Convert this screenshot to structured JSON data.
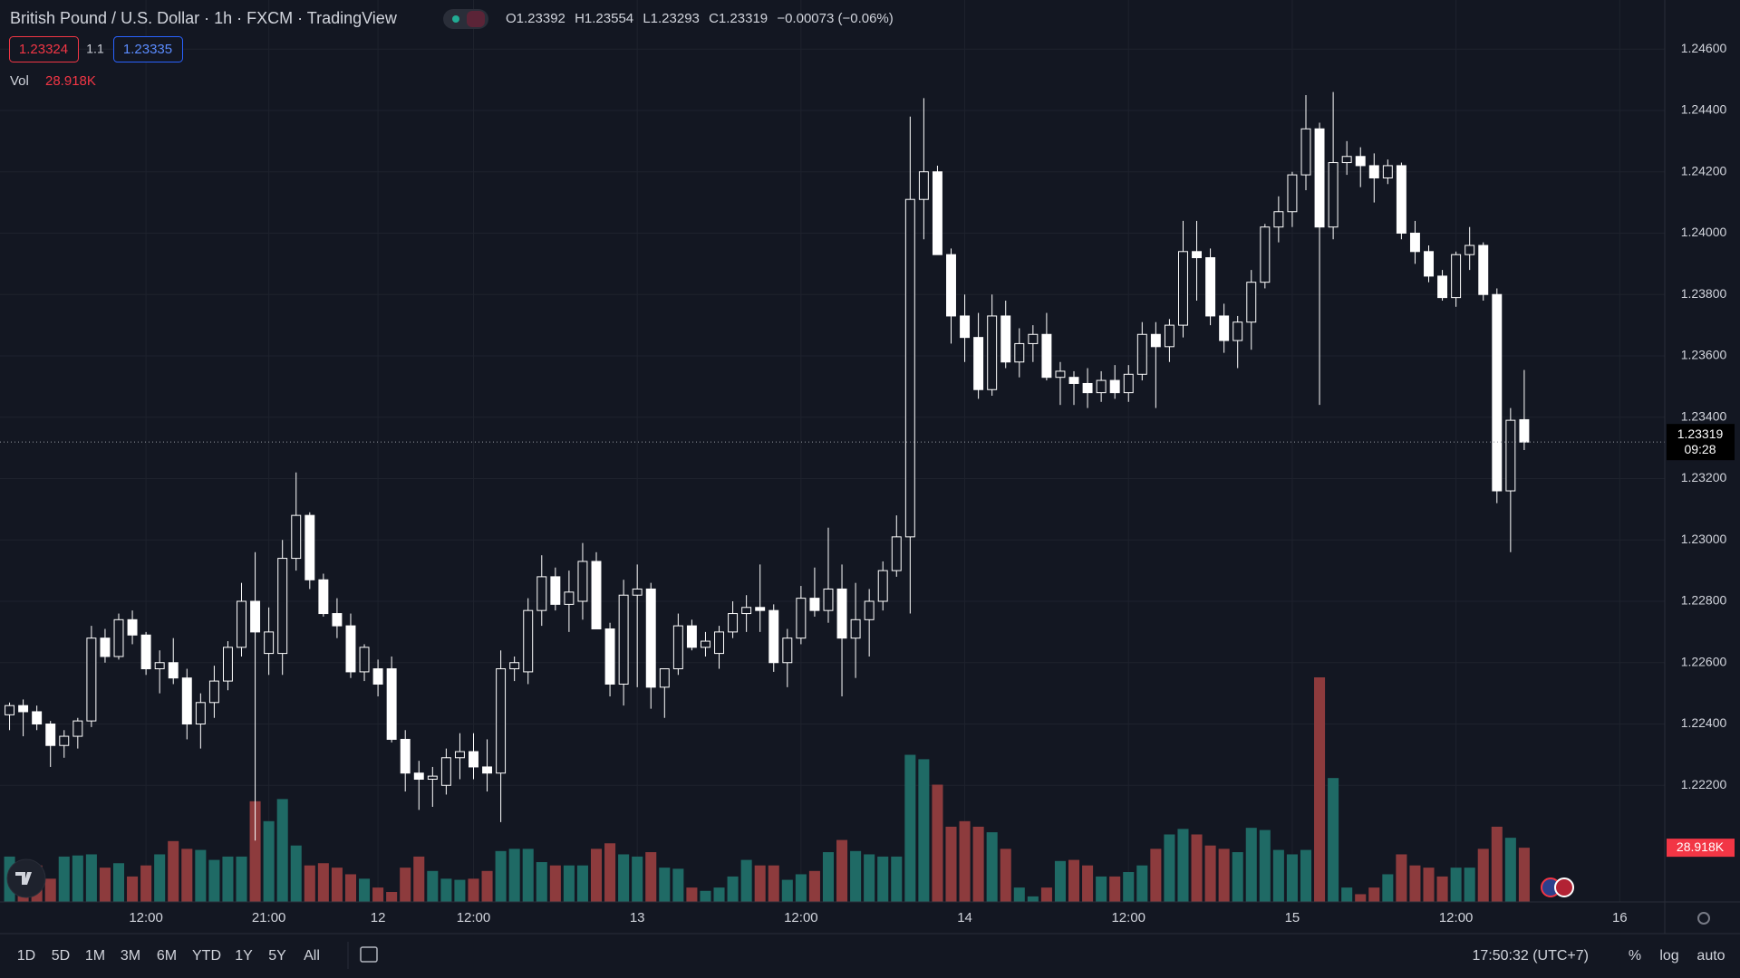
{
  "header": {
    "title": "British Pound / U.S. Dollar · 1h · FXCM · TradingView",
    "ohlc_labels": [
      "O",
      "H",
      "L",
      "C"
    ],
    "change": "−0.00073 (−0.06%)"
  },
  "trade": {
    "sell": "1.23324",
    "qty": "1.1",
    "buy": "1.23335"
  },
  "chart_data": {
    "type": "candlestick",
    "candles": [
      [
        1.2243,
        1.2247,
        1.2238,
        1.2246
      ],
      [
        1.2246,
        1.2248,
        1.2236,
        1.2244
      ],
      [
        1.2244,
        1.2246,
        1.2238,
        1.224
      ],
      [
        1.224,
        1.2241,
        1.2226,
        1.2233
      ],
      [
        1.2233,
        1.2238,
        1.2229,
        1.2236
      ],
      [
        1.2236,
        1.2242,
        1.2232,
        1.2241
      ],
      [
        1.2241,
        1.2272,
        1.2239,
        1.2268
      ],
      [
        1.2268,
        1.2271,
        1.226,
        1.2262
      ],
      [
        1.2262,
        1.2276,
        1.2261,
        1.2274
      ],
      [
        1.2274,
        1.2277,
        1.2266,
        1.2269
      ],
      [
        1.2269,
        1.227,
        1.2256,
        1.2258
      ],
      [
        1.2258,
        1.2264,
        1.225,
        1.226
      ],
      [
        1.226,
        1.2268,
        1.2253,
        1.2255
      ],
      [
        1.2255,
        1.2258,
        1.2235,
        1.224
      ],
      [
        1.224,
        1.225,
        1.2232,
        1.2247
      ],
      [
        1.2247,
        1.2259,
        1.2242,
        1.2254
      ],
      [
        1.2254,
        1.2267,
        1.2251,
        1.2265
      ],
      [
        1.2265,
        1.2286,
        1.2262,
        1.228
      ],
      [
        1.228,
        1.2296,
        1.2202,
        1.227
      ],
      [
        1.2263,
        1.2278,
        1.2256,
        1.227
      ],
      [
        1.2263,
        1.23,
        1.2256,
        1.2294
      ],
      [
        1.2294,
        1.2322,
        1.229,
        1.2308
      ],
      [
        1.2308,
        1.2309,
        1.2284,
        1.2287
      ],
      [
        1.2287,
        1.2289,
        1.2275,
        1.2276
      ],
      [
        1.2276,
        1.2281,
        1.2268,
        1.2272
      ],
      [
        1.2272,
        1.2276,
        1.2255,
        1.2257
      ],
      [
        1.2257,
        1.2266,
        1.2254,
        1.2265
      ],
      [
        1.2258,
        1.2261,
        1.2249,
        1.2253
      ],
      [
        1.2258,
        1.2262,
        1.2234,
        1.2235
      ],
      [
        1.2235,
        1.2238,
        1.2218,
        1.2224
      ],
      [
        1.2224,
        1.2228,
        1.2212,
        1.2222
      ],
      [
        1.2222,
        1.2226,
        1.2213,
        1.2223
      ],
      [
        1.222,
        1.2232,
        1.2217,
        1.2229
      ],
      [
        1.2229,
        1.2237,
        1.2222,
        1.2231
      ],
      [
        1.2231,
        1.2237,
        1.2222,
        1.2226
      ],
      [
        1.2226,
        1.2235,
        1.2218,
        1.2224
      ],
      [
        1.2224,
        1.2264,
        1.2208,
        1.2258
      ],
      [
        1.2258,
        1.2262,
        1.2254,
        1.226
      ],
      [
        1.2257,
        1.2281,
        1.2253,
        1.2277
      ],
      [
        1.2277,
        1.2295,
        1.2272,
        1.2288
      ],
      [
        1.2288,
        1.2291,
        1.2277,
        1.2279
      ],
      [
        1.2279,
        1.229,
        1.227,
        1.2283
      ],
      [
        1.228,
        1.2299,
        1.2274,
        1.2293
      ],
      [
        1.2293,
        1.2296,
        1.2271,
        1.2271
      ],
      [
        1.2271,
        1.2273,
        1.2249,
        1.2253
      ],
      [
        1.2253,
        1.2287,
        1.2246,
        1.2282
      ],
      [
        1.2282,
        1.2292,
        1.2252,
        1.2284
      ],
      [
        1.2284,
        1.2286,
        1.2245,
        1.2252
      ],
      [
        1.2252,
        1.2258,
        1.2242,
        1.2258
      ],
      [
        1.2258,
        1.2276,
        1.2256,
        1.2272
      ],
      [
        1.2272,
        1.2274,
        1.2264,
        1.2265
      ],
      [
        1.2265,
        1.227,
        1.2262,
        1.2267
      ],
      [
        1.2263,
        1.2272,
        1.2258,
        1.227
      ],
      [
        1.227,
        1.228,
        1.2268,
        1.2276
      ],
      [
        1.2276,
        1.2282,
        1.227,
        1.2278
      ],
      [
        1.2278,
        1.2292,
        1.227,
        1.2277
      ],
      [
        1.2277,
        1.2279,
        1.2257,
        1.226
      ],
      [
        1.226,
        1.2271,
        1.2252,
        1.2268
      ],
      [
        1.2268,
        1.2285,
        1.2266,
        1.2281
      ],
      [
        1.2281,
        1.2291,
        1.2275,
        1.2277
      ],
      [
        1.2277,
        1.2304,
        1.2273,
        1.2284
      ],
      [
        1.2284,
        1.2292,
        1.2249,
        1.2268
      ],
      [
        1.2268,
        1.2286,
        1.2255,
        1.2274
      ],
      [
        1.2274,
        1.2284,
        1.2262,
        1.228
      ],
      [
        1.228,
        1.2293,
        1.2277,
        1.229
      ],
      [
        1.229,
        1.2308,
        1.2288,
        1.2301
      ],
      [
        1.2301,
        1.2438,
        1.2276,
        1.2411
      ],
      [
        1.2411,
        1.2444,
        1.2398,
        1.242
      ],
      [
        1.242,
        1.2422,
        1.2393,
        1.2393
      ],
      [
        1.2393,
        1.2395,
        1.2364,
        1.2373
      ],
      [
        1.2373,
        1.238,
        1.2358,
        1.2366
      ],
      [
        1.2366,
        1.2374,
        1.2346,
        1.2349
      ],
      [
        1.2349,
        1.238,
        1.2347,
        1.2373
      ],
      [
        1.2373,
        1.2378,
        1.2356,
        1.2358
      ],
      [
        1.2358,
        1.2369,
        1.2353,
        1.2364
      ],
      [
        1.2364,
        1.237,
        1.2358,
        1.2367
      ],
      [
        1.2367,
        1.2374,
        1.2352,
        1.2353
      ],
      [
        1.2353,
        1.2358,
        1.2344,
        1.2355
      ],
      [
        1.2353,
        1.2355,
        1.2344,
        1.2351
      ],
      [
        1.2351,
        1.2356,
        1.2343,
        1.2348
      ],
      [
        1.2348,
        1.2355,
        1.2345,
        1.2352
      ],
      [
        1.2352,
        1.2357,
        1.2346,
        1.2348
      ],
      [
        1.2348,
        1.2357,
        1.2345,
        1.2354
      ],
      [
        1.2354,
        1.2371,
        1.2352,
        1.2367
      ],
      [
        1.2367,
        1.2371,
        1.2343,
        1.2363
      ],
      [
        1.2363,
        1.2372,
        1.2358,
        1.237
      ],
      [
        1.237,
        1.2404,
        1.2366,
        1.2394
      ],
      [
        1.2394,
        1.2404,
        1.2378,
        1.2392
      ],
      [
        1.2392,
        1.2395,
        1.237,
        1.2373
      ],
      [
        1.2373,
        1.2377,
        1.2361,
        1.2365
      ],
      [
        1.2365,
        1.2373,
        1.2356,
        1.2371
      ],
      [
        1.2371,
        1.2388,
        1.2362,
        1.2384
      ],
      [
        1.2384,
        1.2403,
        1.2382,
        1.2402
      ],
      [
        1.2402,
        1.2412,
        1.2397,
        1.2407
      ],
      [
        1.2407,
        1.242,
        1.2402,
        1.2419
      ],
      [
        1.2419,
        1.2445,
        1.2414,
        1.2434
      ],
      [
        1.2434,
        1.2436,
        1.2344,
        1.2402
      ],
      [
        1.2402,
        1.2446,
        1.2398,
        1.2423
      ],
      [
        1.2423,
        1.243,
        1.2419,
        1.2425
      ],
      [
        1.2425,
        1.2428,
        1.2415,
        1.2422
      ],
      [
        1.2422,
        1.2426,
        1.241,
        1.2418
      ],
      [
        1.2418,
        1.2424,
        1.2416,
        1.2422
      ],
      [
        1.2422,
        1.2423,
        1.2398,
        1.24
      ],
      [
        1.24,
        1.2404,
        1.239,
        1.2394
      ],
      [
        1.2394,
        1.2396,
        1.2384,
        1.2386
      ],
      [
        1.2386,
        1.2388,
        1.2378,
        1.2379
      ],
      [
        1.2379,
        1.2394,
        1.2376,
        1.2393
      ],
      [
        1.2393,
        1.2402,
        1.2388,
        1.2396
      ],
      [
        1.2396,
        1.2397,
        1.2378,
        1.238
      ],
      [
        1.238,
        1.2382,
        1.2312,
        1.2316
      ],
      [
        1.2316,
        1.2343,
        1.2296,
        1.2339
      ],
      [
        1.23392,
        1.23554,
        1.23293,
        1.23319
      ]
    ],
    "up_color": "#131722",
    "down_color": "#ffffff",
    "wick_color": "#ffffff",
    "volume": {
      "name": "Vol",
      "values": [
        24190,
        16520,
        19470,
        12390,
        24190,
        24780,
        25370,
        18290,
        20650,
        13570,
        19470,
        25370,
        32450,
        28320,
        27730,
        22420,
        24190,
        24190,
        53690,
        43070,
        54870,
        30090,
        19470,
        20650,
        18290,
        14750,
        12390,
        7670,
        5310,
        18290,
        24190,
        16520,
        12390,
        11800,
        12390,
        16520,
        27140,
        28320,
        28320,
        21240,
        19470,
        19470,
        19470,
        28320,
        31270,
        25370,
        24190,
        26550,
        18290,
        17700,
        7670,
        5900,
        7670,
        13570,
        22420,
        19470,
        19470,
        11800,
        14750,
        16520,
        26550,
        33040,
        27140,
        25370,
        24190,
        24190,
        78470,
        76110,
        62540,
        40120,
        43070,
        40120,
        37170,
        28320,
        7670,
        2950,
        7670,
        21830,
        22420,
        19470,
        13570,
        13570,
        15930,
        19470,
        28320,
        35990,
        38940,
        35990,
        30090,
        28320,
        26550,
        39530,
        38350,
        27730,
        25370,
        27730,
        119770,
        66080,
        7670,
        4130,
        7670,
        14750,
        25370,
        19470,
        18290,
        13570,
        18290,
        18290,
        28320,
        40120,
        34220,
        28918
      ],
      "last_label": "28.918K",
      "up_color": "#1f6a65",
      "down_color": "#8d3b3d",
      "label_color": "#f23645"
    },
    "ylim": [
      1.2182,
      1.2476
    ],
    "yticks": [
      {
        "value": 1.222,
        "label": "1.22200"
      },
      {
        "value": 1.224,
        "label": "1.22400"
      },
      {
        "value": 1.226,
        "label": "1.22600"
      },
      {
        "value": 1.228,
        "label": "1.22800"
      },
      {
        "value": 1.23,
        "label": "1.23000"
      },
      {
        "value": 1.232,
        "label": "1.23200"
      },
      {
        "value": 1.234,
        "label": "1.23400"
      },
      {
        "value": 1.236,
        "label": "1.23600"
      },
      {
        "value": 1.238,
        "label": "1.23800"
      },
      {
        "value": 1.24,
        "label": "1.24000"
      },
      {
        "value": 1.242,
        "label": "1.24200"
      },
      {
        "value": 1.244,
        "label": "1.24400"
      },
      {
        "value": 1.246,
        "label": "1.24600"
      }
    ],
    "xlim": [
      -0.7,
      121.3
    ],
    "xticks": [
      {
        "value": 10,
        "label": "12:00"
      },
      {
        "value": 19,
        "label": "21:00"
      },
      {
        "value": 27,
        "label": "12"
      },
      {
        "value": 34,
        "label": "12:00"
      },
      {
        "value": 46,
        "label": "13"
      },
      {
        "value": 58,
        "label": "12:00"
      },
      {
        "value": 70,
        "label": "14"
      },
      {
        "value": 82,
        "label": "12:00"
      },
      {
        "value": 94,
        "label": "15"
      },
      {
        "value": 106,
        "label": "12:00"
      },
      {
        "value": 118,
        "label": "16"
      }
    ],
    "grid": true,
    "countdown": "09:28"
  },
  "toolbar": {
    "ranges": [
      "1D",
      "5D",
      "1M",
      "3M",
      "6M",
      "YTD",
      "1Y",
      "5Y",
      "All"
    ],
    "clock": "17:50:32 (UTC+7)",
    "options": [
      "%",
      "log",
      "auto"
    ]
  }
}
